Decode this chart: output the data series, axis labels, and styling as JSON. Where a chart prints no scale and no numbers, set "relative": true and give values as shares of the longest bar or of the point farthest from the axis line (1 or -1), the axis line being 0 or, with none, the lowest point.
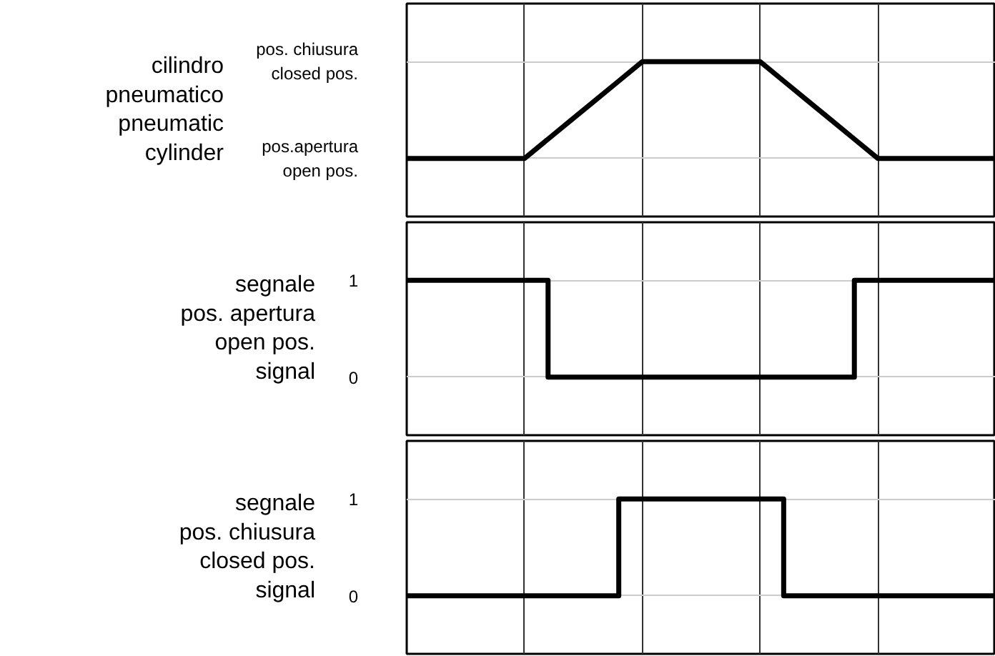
{
  "chart_data": [
    {
      "type": "line",
      "ylabel": "cilindro\npneumatico\npneumatic\ncylinder",
      "categories": [
        null,
        null,
        null,
        null,
        null,
        null,
        null,
        null,
        null,
        null,
        null,
        null,
        null,
        null,
        null,
        null,
        null,
        null,
        null,
        null,
        null,
        null,
        null,
        null,
        null,
        null
      ],
      "series": [
        {
          "color": "#000000",
          "values": [
            0,
            0,
            0,
            0,
            0,
            0,
            0.2,
            0.4,
            0.6,
            0.8,
            1,
            1,
            1,
            1,
            1,
            1,
            0.8,
            0.6,
            0.4,
            0.2,
            0,
            0,
            0,
            0,
            0,
            0
          ]
        }
      ],
      "relative": true,
      "annotations": [
        "pos. chiusura\nclosed pos.",
        "pos.apertura\nopen pos."
      ],
      "tick_labels": false,
      "grid": true,
      "line_style": "solid"
    },
    {
      "type": "step",
      "ylabel": "segnale\npos. apertura\nopen pos.\nsignal",
      "categories": [
        null,
        null,
        null,
        null,
        null,
        null,
        null,
        null,
        null,
        null,
        null,
        null,
        null,
        null,
        null,
        null,
        null,
        null,
        null,
        null,
        null,
        null,
        null,
        null,
        null,
        null
      ],
      "series": [
        {
          "color": "#000000",
          "values": [
            1,
            1,
            1,
            1,
            1,
            1,
            0,
            0,
            0,
            0,
            0,
            0,
            0,
            0,
            0,
            0,
            0,
            0,
            0,
            1,
            1,
            1,
            1,
            1,
            1,
            1
          ]
        }
      ],
      "ylim": [
        -0.6,
        1.6
      ],
      "yticks": [
        0,
        1
      ],
      "tick_labels": "y",
      "grid": true,
      "line_style": "solid"
    },
    {
      "type": "step",
      "ylabel": "segnale\npos. chiusura\nclosed pos.\nsignal",
      "categories": [
        null,
        null,
        null,
        null,
        null,
        null,
        null,
        null,
        null,
        null,
        null,
        null,
        null,
        null,
        null,
        null,
        null,
        null,
        null,
        null,
        null,
        null,
        null,
        null,
        null,
        null
      ],
      "series": [
        {
          "color": "#000000",
          "values": [
            0,
            0,
            0,
            0,
            0,
            0,
            0,
            0,
            0,
            1,
            1,
            1,
            1,
            1,
            1,
            1,
            0,
            0,
            0,
            0,
            0,
            0,
            0,
            0,
            0,
            0
          ]
        }
      ],
      "ylim": [
        -0.6,
        1.6
      ],
      "yticks": [
        0,
        1
      ],
      "tick_labels": "y",
      "grid": true,
      "line_style": "solid"
    }
  ]
}
